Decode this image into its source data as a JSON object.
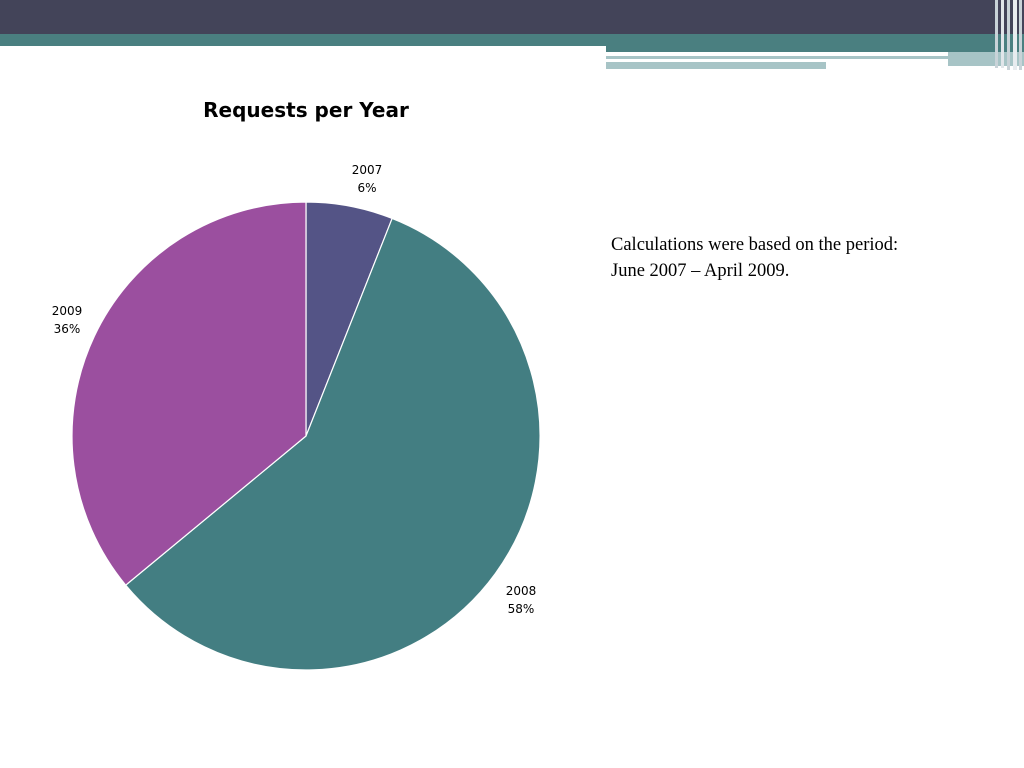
{
  "colors": {
    "header_dark": "#434459",
    "header_teal": "#4a7f80",
    "header_light": "#a7c4c6",
    "slice_2007": "#545486",
    "slice_2008": "#437e82",
    "slice_2009": "#9b4f9f"
  },
  "chart_data": {
    "type": "pie",
    "title": "Requests per Year",
    "categories": [
      "2007",
      "2008",
      "2009"
    ],
    "values": [
      6,
      58,
      36
    ],
    "labels": [
      {
        "category": "2007",
        "percent": "6%"
      },
      {
        "category": "2008",
        "percent": "58%"
      },
      {
        "category": "2009",
        "percent": "36%"
      }
    ],
    "legend": "none"
  },
  "note": {
    "line1": "Calculations were based on the period:",
    "line2": "June 2007 – April 2009."
  }
}
